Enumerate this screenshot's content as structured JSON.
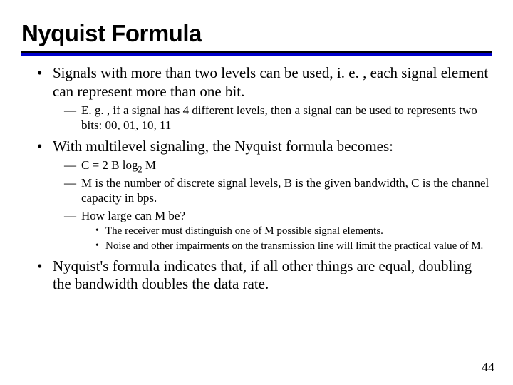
{
  "title": "Nyquist Formula",
  "rule": {
    "black": "#000000",
    "blue": "#0000cc"
  },
  "bullets": {
    "b1": {
      "text": "Signals with more than two levels can be used, i. e. , each signal element can represent more than one bit.",
      "sub": {
        "s1": "E. g. , if a signal has 4 different levels, then a signal can be used to represents two bits: 00, 01, 10, 11"
      }
    },
    "b2": {
      "text": "With multilevel signaling, the Nyquist formula becomes:",
      "sub": {
        "s1_pre": "C = 2 B  log",
        "s1_sub": "2",
        "s1_post": " M",
        "s2": "M is the number of discrete signal levels, B is the given bandwidth, C is the channel capacity in bps.",
        "s3": "How large can M be?",
        "s3sub": {
          "t1": "The receiver must distinguish one of M possible signal elements.",
          "t2": "Noise and other impairments on the transmission line will limit the practical value of M."
        }
      }
    },
    "b3": {
      "text": "Nyquist's formula indicates that, if all other things are equal, doubling the bandwidth doubles the data rate."
    }
  },
  "page_number": "44",
  "colors": {
    "text": "#000000",
    "background": "#ffffff"
  }
}
